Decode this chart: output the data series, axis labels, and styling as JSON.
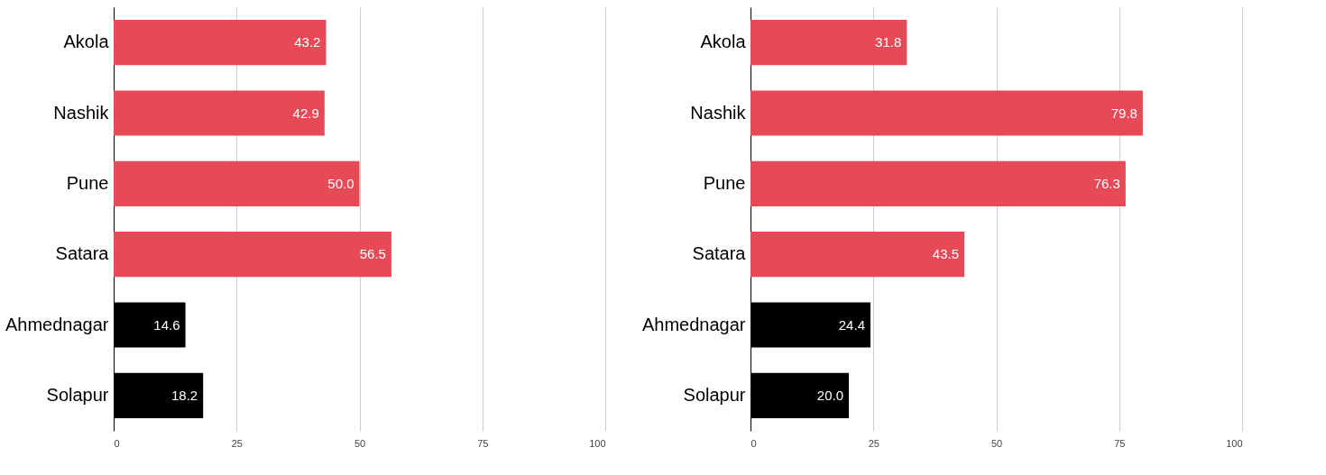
{
  "chart_data": [
    {
      "type": "bar",
      "orientation": "horizontal",
      "categories": [
        "Akola",
        "Nashik",
        "Pune",
        "Satara",
        "Ahmednagar",
        "Solapur"
      ],
      "values": [
        43.2,
        42.9,
        50.0,
        56.5,
        14.6,
        18.2
      ],
      "colors": [
        "#e64a57",
        "#e64a57",
        "#e64a57",
        "#e64a57",
        "#000000",
        "#000000"
      ],
      "value_labels": [
        "43.2",
        "42.9",
        "50.0",
        "56.5",
        "14.6",
        "18.2"
      ],
      "xlim": [
        0,
        100
      ],
      "xticks": [
        0,
        25,
        50,
        75,
        100
      ],
      "grid": "x"
    },
    {
      "type": "bar",
      "orientation": "horizontal",
      "categories": [
        "Akola",
        "Nashik",
        "Pune",
        "Satara",
        "Ahmednagar",
        "Solapur"
      ],
      "values": [
        31.8,
        79.8,
        76.3,
        43.5,
        24.4,
        20.0
      ],
      "colors": [
        "#e64a57",
        "#e64a57",
        "#e64a57",
        "#e64a57",
        "#000000",
        "#000000"
      ],
      "value_labels": [
        "31.8",
        "79.8",
        "76.3",
        "43.5",
        "24.4",
        "20.0"
      ],
      "xlim": [
        0,
        100
      ],
      "xticks": [
        0,
        25,
        50,
        75,
        100
      ],
      "grid": "x"
    }
  ]
}
